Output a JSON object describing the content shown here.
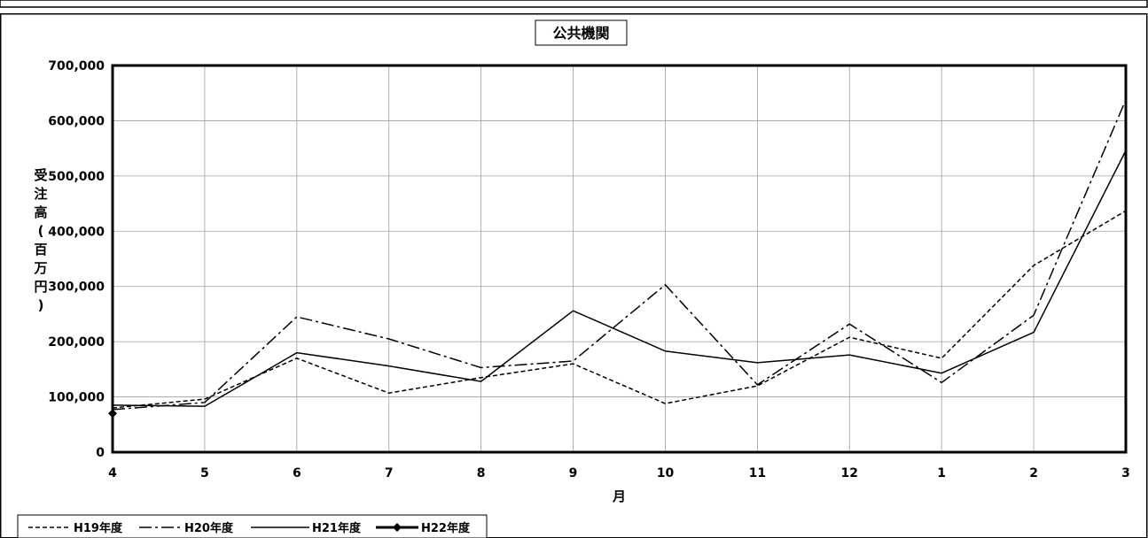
{
  "chart_data": {
    "type": "line",
    "title": "公共機関",
    "xlabel": "月",
    "ylabel": "受注高(百万円)",
    "categories": [
      "4",
      "5",
      "6",
      "7",
      "8",
      "9",
      "10",
      "11",
      "12",
      "1",
      "2",
      "3"
    ],
    "yticks": [
      "0",
      "100,000",
      "200,000",
      "300,000",
      "400,000",
      "500,000",
      "600,000",
      "700,000"
    ],
    "ylim": [
      0,
      700000
    ],
    "grid": true,
    "legend_position": "bottom-left",
    "series": [
      {
        "name": "H19年度",
        "style": "dashed",
        "marker": "none",
        "color": "#000000",
        "values": [
          80000,
          96000,
          170000,
          107000,
          135000,
          160000,
          88000,
          120000,
          208000,
          170000,
          338000,
          437000
        ]
      },
      {
        "name": "H20年度",
        "style": "dashdot",
        "marker": "none",
        "color": "#000000",
        "values": [
          77000,
          90000,
          245000,
          205000,
          153000,
          165000,
          303000,
          122000,
          232000,
          126000,
          248000,
          638000
        ]
      },
      {
        "name": "H21年度",
        "style": "solid",
        "marker": "none",
        "color": "#000000",
        "values": [
          85000,
          83000,
          180000,
          156000,
          128000,
          256000,
          183000,
          162000,
          176000,
          143000,
          217000,
          546000
        ]
      },
      {
        "name": "H22年度",
        "style": "solid-bold",
        "marker": "diamond",
        "color": "#000000",
        "values": [
          70000,
          null,
          null,
          null,
          null,
          null,
          null,
          null,
          null,
          null,
          null,
          null
        ]
      }
    ]
  }
}
